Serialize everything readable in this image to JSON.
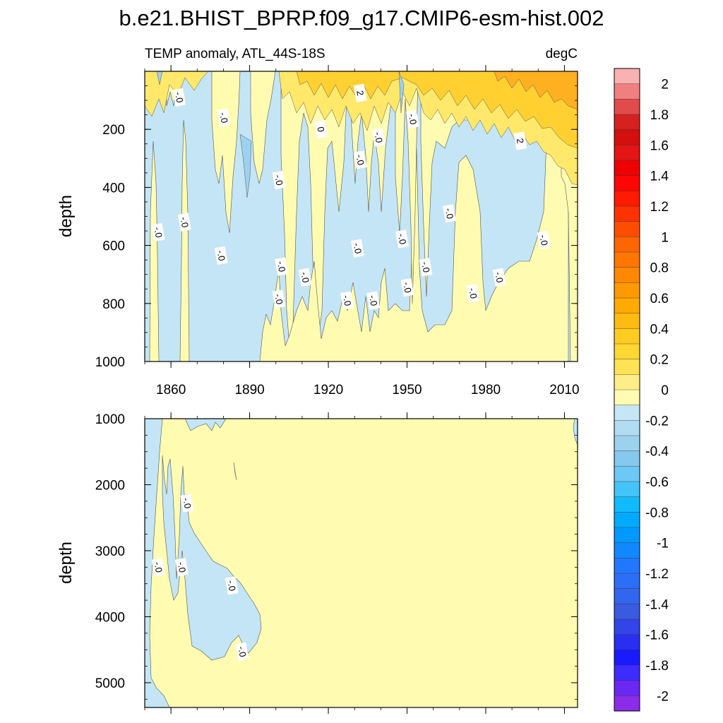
{
  "chart_data": {
    "type": "heatmap",
    "title": "b.e21.BHIST_BPRP.f09_g17.CMIP6-esm-hist.002",
    "subtitle_left": "TEMP anomaly, ATL_44S-18S",
    "subtitle_right": "degC",
    "x_range": [
      1850,
      2015
    ],
    "x_ticks": [
      1860,
      1890,
      1920,
      1950,
      1980,
      2010
    ],
    "x_tick_labels": [
      "1860",
      "1890",
      "1920",
      "1950",
      "1980",
      "2010"
    ],
    "panels": [
      {
        "name": "upper",
        "ylabel": "depth",
        "y_range": [
          0,
          1000
        ],
        "y_ticks": [
          200,
          400,
          600,
          800,
          1000
        ],
        "y_tick_labels": [
          "200",
          "400",
          "600",
          "800",
          "1000"
        ]
      },
      {
        "name": "lower",
        "ylabel": "depth",
        "y_range": [
          1000,
          5375
        ],
        "y_ticks": [
          1000,
          2000,
          3000,
          4000,
          5000
        ],
        "y_tick_labels": [
          "1000",
          "2000",
          "3000",
          "4000",
          "5000"
        ]
      }
    ],
    "contour_labels_upper": [
      {
        "year": 1863,
        "depth": 90,
        "text": "-.0"
      },
      {
        "year": 1880,
        "depth": 160,
        "text": "-.0"
      },
      {
        "year": 1917,
        "depth": 200,
        "text": "0"
      },
      {
        "year": 1932,
        "depth": 75,
        "text": "2"
      },
      {
        "year": 1939,
        "depth": 228,
        "text": "-.0"
      },
      {
        "year": 1952,
        "depth": 165,
        "text": "-.0"
      },
      {
        "year": 1993,
        "depth": 240,
        "text": "2"
      },
      {
        "year": 1932,
        "depth": 305,
        "text": "-.0"
      },
      {
        "year": 1901,
        "depth": 375,
        "text": "-.0"
      },
      {
        "year": 1865,
        "depth": 520,
        "text": "-.0"
      },
      {
        "year": 1855,
        "depth": 555,
        "text": "-.0"
      },
      {
        "year": 1966,
        "depth": 490,
        "text": "-.0"
      },
      {
        "year": 1948,
        "depth": 578,
        "text": "-.0"
      },
      {
        "year": 2002,
        "depth": 582,
        "text": "-.0"
      },
      {
        "year": 1931,
        "depth": 610,
        "text": "-.0"
      },
      {
        "year": 1879,
        "depth": 635,
        "text": "-.0"
      },
      {
        "year": 1902,
        "depth": 673,
        "text": "-.0"
      },
      {
        "year": 1957,
        "depth": 675,
        "text": "-.0"
      },
      {
        "year": 1911,
        "depth": 710,
        "text": "-.0"
      },
      {
        "year": 1985,
        "depth": 710,
        "text": "-.0"
      },
      {
        "year": 1950,
        "depth": 745,
        "text": "-.0"
      },
      {
        "year": 1975,
        "depth": 765,
        "text": "-.0"
      },
      {
        "year": 1901,
        "depth": 785,
        "text": "-.0"
      },
      {
        "year": 1927,
        "depth": 790,
        "text": "-.0"
      },
      {
        "year": 1937,
        "depth": 790,
        "text": "-.0"
      }
    ],
    "contour_labels_lower": [
      {
        "year": 1866,
        "depth": 2280,
        "text": "-.0"
      },
      {
        "year": 1855,
        "depth": 3250,
        "text": "-.0"
      },
      {
        "year": 1864,
        "depth": 3250,
        "text": "-.0"
      },
      {
        "year": 1883,
        "depth": 3530,
        "text": "-.0"
      },
      {
        "year": 1887,
        "depth": 4530,
        "text": "-.0"
      }
    ],
    "colorbar": {
      "labels": [
        "2",
        "1.8",
        "1.6",
        "1.4",
        "1.2",
        "1",
        "0.8",
        "0.6",
        "0.4",
        "0.2",
        "0",
        "-0.2",
        "-0.4",
        "-0.6",
        "-0.8",
        "-1",
        "-1.2",
        "-1.4",
        "-1.6",
        "-1.8",
        "-2"
      ],
      "colors": [
        "#f9b1b1",
        "#f08080",
        "#e14b4b",
        "#d62121",
        "#d40f0f",
        "#e31515",
        "#ee0000",
        "#ff0505",
        "#ff1a00",
        "#ff3300",
        "#ff4d00",
        "#ff6600",
        "#ff7700",
        "#ff8800",
        "#ff9900",
        "#ffaa00",
        "#ffbb11",
        "#ffcc22",
        "#ffd733",
        "#ffe255",
        "#ffee88",
        "#fffcb0",
        "#c7e6f5",
        "#b1dcf2",
        "#9dd2ef",
        "#86c8ee",
        "#6ec8f5",
        "#44c4f7",
        "#11bbff",
        "#00aaff",
        "#0099ff",
        "#1188ff",
        "#2277ff",
        "#2d6ef7",
        "#3366ee",
        "#3a5be0",
        "#3344e8",
        "#2a2ef0",
        "#1a1aff",
        "#3d2bff",
        "#6a28f2",
        "#8c2be8"
      ]
    },
    "colors": {
      "neg_light": "#c4e5f5",
      "pos_light": "#fffcb2",
      "pos_mid": "#ffe86a",
      "pos_strong": "#ffd030",
      "pos_orange": "#ffb020"
    }
  }
}
